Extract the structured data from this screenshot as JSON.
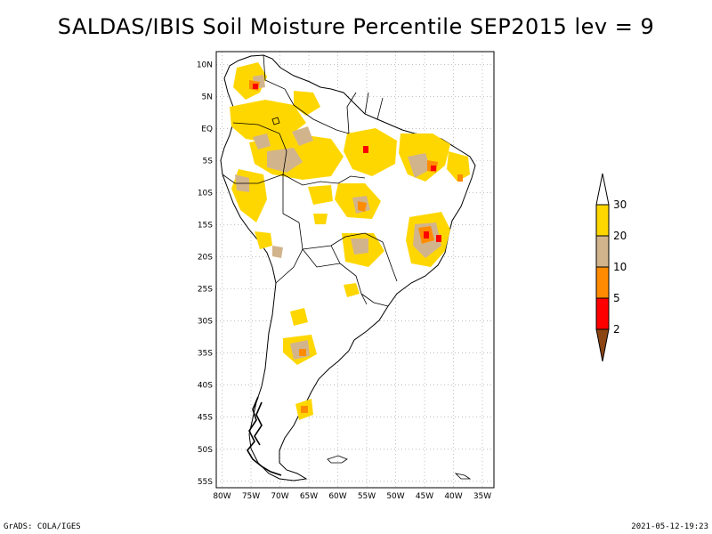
{
  "title": "SALDAS/IBIS Soil Moisture Percentile SEP2015 lev = 9",
  "footer_left": "GrADS: COLA/IGES",
  "footer_right": "2021-05-12-19:23",
  "map": {
    "lon_labels": [
      "80W",
      "75W",
      "70W",
      "65W",
      "60W",
      "55W",
      "50W",
      "45W",
      "40W",
      "35W"
    ],
    "lat_labels": [
      "10N",
      "5N",
      "EQ",
      "5S",
      "10S",
      "15S",
      "20S",
      "25S",
      "30S",
      "35S",
      "40S",
      "45S",
      "50S",
      "55S"
    ],
    "lon_range": [
      -81,
      -33
    ],
    "lat_range": [
      -56,
      12
    ],
    "gridlines": true
  },
  "legend": {
    "labels": [
      "30",
      "20",
      "10",
      "5",
      "2"
    ],
    "colors": {
      "above_30": "#ffffff",
      "20_30": "#ffd700",
      "10_20": "#d2b48c",
      "5_10": "#ff8c00",
      "2_5": "#ff0000",
      "below_2": "#8b4513"
    }
  }
}
